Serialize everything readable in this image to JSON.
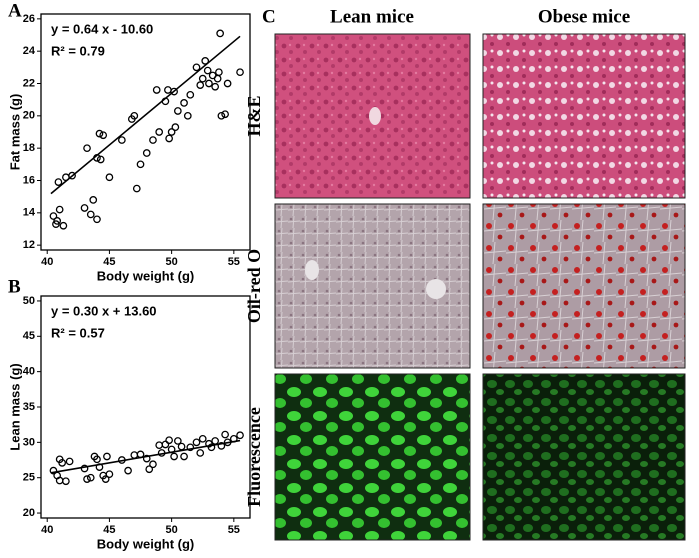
{
  "chart_data": [
    {
      "type": "scatter",
      "panel_label": "A",
      "xlabel": "Body weight (g)",
      "ylabel": "Fat mass (g)",
      "equation": "y = 0.64 x - 10.60",
      "r2": "R² = 0.79",
      "xlim": [
        39.5,
        56.3
      ],
      "ylim": [
        11.7,
        26.3
      ],
      "xticks": [
        40,
        45,
        50,
        55
      ],
      "yticks": [
        12,
        14,
        16,
        18,
        20,
        22,
        24,
        26
      ],
      "x": [
        40.5,
        40.7,
        41,
        40.8,
        41.3,
        40.9,
        42,
        43,
        43.5,
        43.7,
        44,
        43.2,
        44,
        44.2,
        44.5,
        44.3,
        45,
        46.8,
        47,
        47.2,
        47.5,
        48,
        48.5,
        48.8,
        49,
        49.5,
        49.8,
        50,
        50.3,
        49.7,
        50.2,
        50.5,
        51,
        51.3,
        51.5,
        52,
        52.3,
        52.5,
        52.7,
        53,
        53.3,
        53.5,
        53.7,
        54,
        54.3,
        53.8,
        53.9,
        54.5,
        55.5,
        52.9,
        41.5,
        46
      ],
      "values": [
        13.8,
        13.3,
        14.2,
        13.5,
        13.2,
        15.9,
        16.3,
        14.3,
        13.9,
        14.8,
        13.6,
        18,
        17.4,
        18.9,
        18.8,
        17.3,
        16.2,
        19.8,
        20,
        15.5,
        17,
        17.7,
        18.5,
        21.6,
        19,
        20.9,
        18.6,
        19,
        19.3,
        21.6,
        21.5,
        20.3,
        20.8,
        20,
        21.3,
        23,
        21.9,
        22.3,
        23.4,
        22,
        22.5,
        21.8,
        22.3,
        20,
        20.1,
        22.7,
        25.1,
        22,
        22.7,
        22.8,
        16.2,
        18.5
      ],
      "fit": {
        "x": [
          40.3,
          55.5
        ],
        "values": [
          15.19,
          24.92
        ]
      }
    },
    {
      "type": "scatter",
      "panel_label": "B",
      "xlabel": "Body weight (g)",
      "ylabel": "Lean mass (g)",
      "equation": "y = 0.30 x + 13.60",
      "r2": "R² = 0.57",
      "xlim": [
        39.5,
        56.3
      ],
      "ylim": [
        19.3,
        50.7
      ],
      "xticks": [
        40,
        45,
        50,
        55
      ],
      "yticks": [
        20,
        25,
        30,
        35,
        40,
        45,
        50
      ],
      "x": [
        40.5,
        40.8,
        41,
        41.2,
        41.5,
        41.8,
        41,
        43,
        43.2,
        43.5,
        43.8,
        44,
        44.2,
        44.5,
        44.8,
        45,
        44.7,
        46.5,
        47,
        47.5,
        48,
        48.2,
        48.5,
        49,
        49.2,
        49.5,
        49.8,
        50,
        50.2,
        50.5,
        50.8,
        51,
        51.5,
        52,
        52.3,
        52.5,
        53,
        53.2,
        53.5,
        54,
        54.3,
        54.5,
        55,
        55.5,
        46
      ],
      "values": [
        26,
        25.3,
        27.6,
        27.1,
        24.5,
        27.3,
        24.6,
        26.3,
        24.8,
        25,
        28,
        27.6,
        26.5,
        25.3,
        28,
        25.5,
        24.8,
        26,
        28.2,
        28.3,
        27.7,
        26.2,
        26.9,
        29.6,
        28.5,
        29.7,
        30.3,
        29,
        28,
        30.2,
        29.4,
        28,
        29.3,
        30,
        28.5,
        30.5,
        29.8,
        29.3,
        30.2,
        29.5,
        31.1,
        30,
        30.5,
        31,
        27.5
      ],
      "fit": {
        "x": [
          40.3,
          55.5
        ],
        "values": [
          25.69,
          30.25
        ]
      }
    }
  ],
  "panel_c": {
    "panel_label": "C",
    "columns": [
      "Lean mice",
      "Obese mice"
    ],
    "rows": [
      "H&E",
      "Oil-red O",
      "Fluorescence"
    ]
  }
}
